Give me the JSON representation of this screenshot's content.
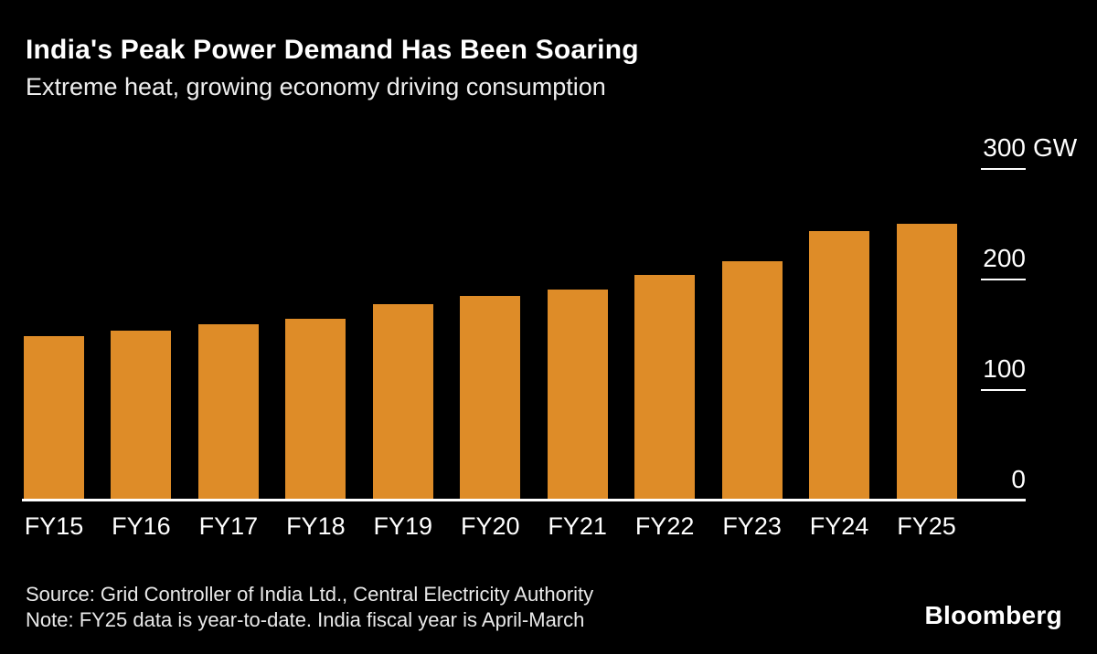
{
  "header": {
    "title": "India's Peak Power Demand Has Been Soaring",
    "subtitle": "Extreme heat, growing economy driving consumption"
  },
  "chart_data": {
    "type": "bar",
    "categories": [
      "FY15",
      "FY16",
      "FY17",
      "FY18",
      "FY19",
      "FY20",
      "FY21",
      "FY22",
      "FY23",
      "FY24",
      "FY25"
    ],
    "values": [
      148,
      153,
      159,
      164,
      177,
      184,
      190,
      203,
      216,
      243,
      250
    ],
    "unit": "GW",
    "title": "India's Peak Power Demand Has Been Soaring",
    "subtitle": "Extreme heat, growing economy driving consumption",
    "xlabel": "",
    "ylabel": "GW",
    "ylim": [
      0,
      300
    ],
    "yticks": [
      0,
      100,
      200,
      300
    ],
    "ytick_top_label": "300 GW",
    "value_axis_side": "right",
    "grid": "off",
    "legend_position": "none",
    "bar_color": "#DE8C28",
    "axis_color": "#FFFFFF",
    "background_color": "#000000"
  },
  "footer": {
    "source": "Source: Grid Controller of India Ltd., Central Electricity Authority",
    "note": "Note: FY25 data is year-to-date. India fiscal year is April-March",
    "brand": "Bloomberg"
  }
}
